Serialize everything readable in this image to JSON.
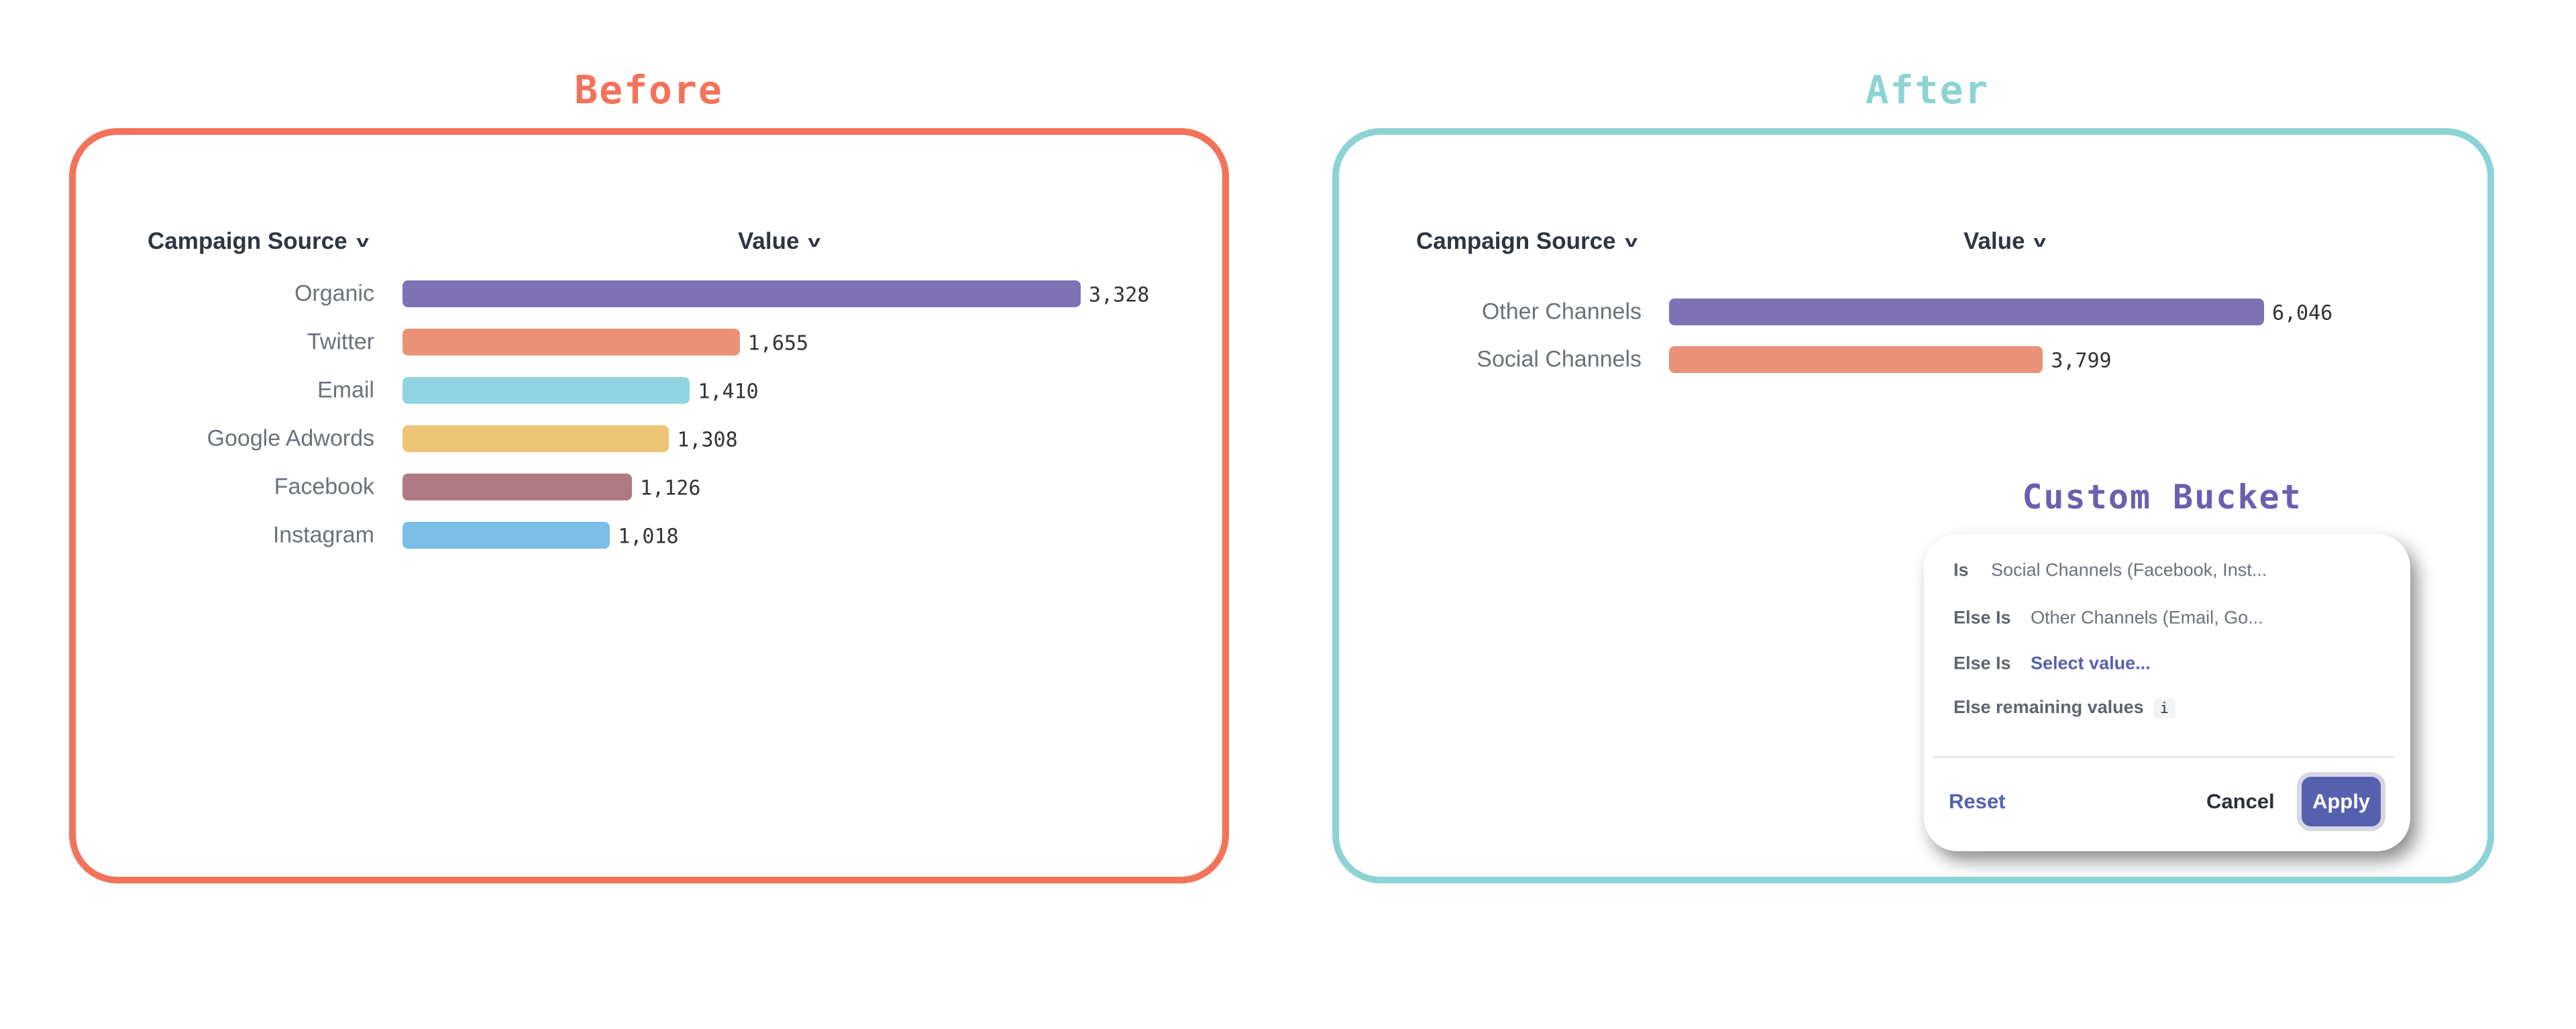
{
  "before": {
    "title": "Before",
    "color": "#F2735A",
    "header_dimension": "Campaign Source",
    "header_measure": "Value",
    "rows": [
      {
        "label": "Organic",
        "value": 3328,
        "display": "3,328",
        "color": "#7E72B5"
      },
      {
        "label": "Twitter",
        "value": 1655,
        "display": "1,655",
        "color": "#E99277"
      },
      {
        "label": "Email",
        "value": 1410,
        "display": "1,410",
        "color": "#90D4E1"
      },
      {
        "label": "Google Adwords",
        "value": 1308,
        "display": "1,308",
        "color": "#EEC477"
      },
      {
        "label": "Facebook",
        "value": 1126,
        "display": "1,126",
        "color": "#AF7882"
      },
      {
        "label": "Instagram",
        "value": 1018,
        "display": "1,018",
        "color": "#7BBEE8"
      }
    ]
  },
  "after": {
    "title": "After",
    "color": "#8ED3D3",
    "header_dimension": "Campaign Source",
    "header_measure": "Value",
    "rows": [
      {
        "label": "Other Channels",
        "value": 6046,
        "display": "6,046",
        "color": "#7E72B5"
      },
      {
        "label": "Social Channels",
        "value": 3799,
        "display": "3,799",
        "color": "#E99277"
      }
    ]
  },
  "custom_bucket": {
    "title": "Custom Bucket",
    "title_color": "#6A5FB0",
    "rows": [
      {
        "label": "Is",
        "value": "Social Channels (Facebook, Inst..."
      },
      {
        "label": "Else Is",
        "value": "Other Channels (Email, Go..."
      },
      {
        "label": "Else Is",
        "value": "Select value..."
      }
    ],
    "remaining_label": "Else remaining values",
    "info_icon": "i",
    "reset_label": "Reset",
    "cancel_label": "Cancel",
    "apply_label": "Apply",
    "accent": "#5561AE"
  }
}
